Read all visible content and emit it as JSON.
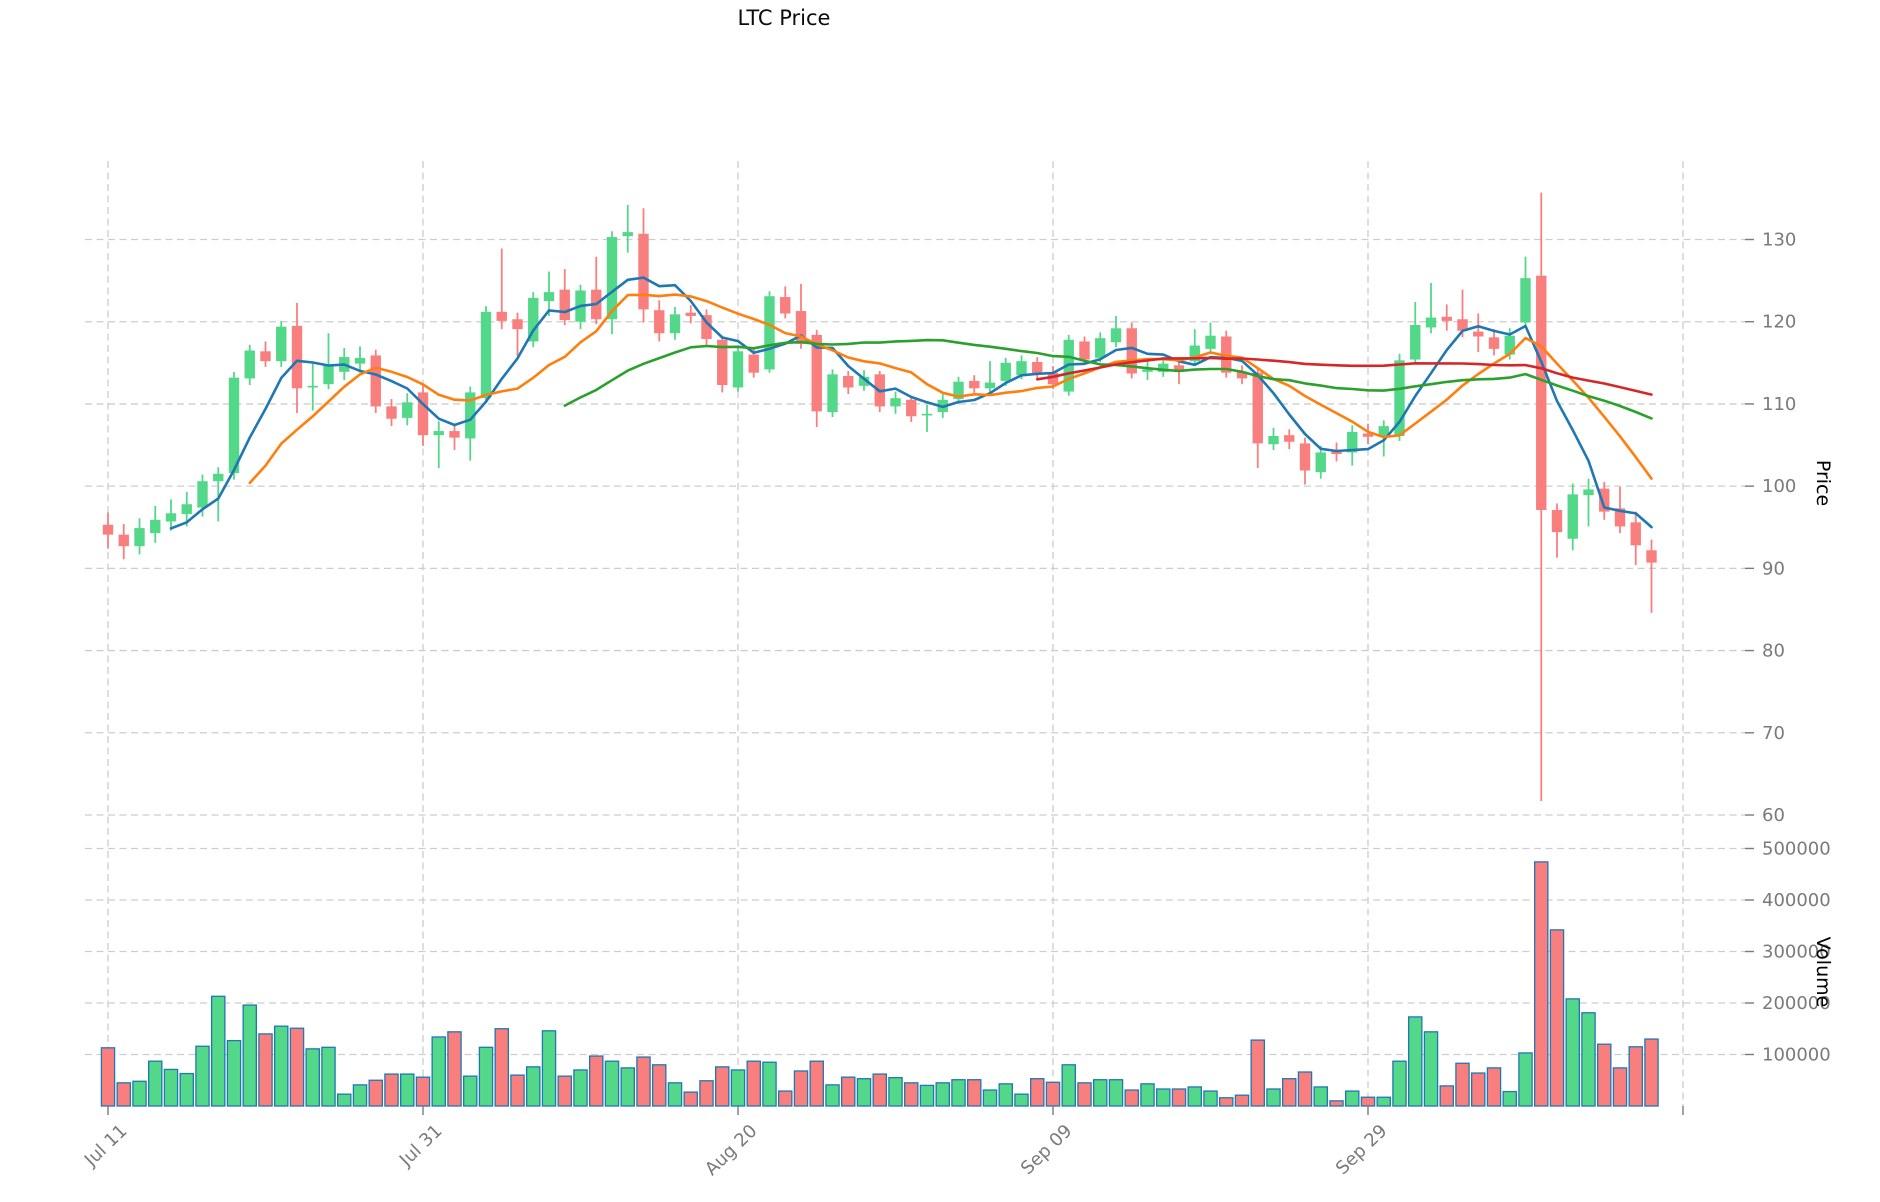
{
  "title": "LTC Price",
  "axes": {
    "price_label": "Price",
    "volume_label": "Volume",
    "price_ticks": [
      60,
      70,
      80,
      90,
      100,
      110,
      120,
      130
    ],
    "volume_ticks": [
      100000,
      200000,
      300000,
      400000,
      500000
    ],
    "x_ticks": [
      {
        "index": 0,
        "label": "Jul 11"
      },
      {
        "index": 20,
        "label": "Jul 31"
      },
      {
        "index": 40,
        "label": "Aug 20"
      },
      {
        "index": 60,
        "label": "Sep 09"
      },
      {
        "index": 80,
        "label": "Sep 29"
      },
      {
        "index": 100,
        "label": ""
      }
    ]
  },
  "colors": {
    "up": "#53D88A",
    "down": "#F97F7F",
    "volume_edge": "#1F77B4",
    "grid": "#CDCDCD",
    "tick_text": "#7A7A7A"
  },
  "chart_data": {
    "type": "candlestick",
    "title": "LTC Price",
    "ylabel": "Price",
    "ylabel2": "Volume",
    "legend_position": "none",
    "grid": true,
    "ma_windows": [
      5,
      10,
      30,
      60
    ],
    "ma_colors": [
      "#1F77B4",
      "#FF7F0E",
      "#2CA02C",
      "#D62728"
    ],
    "price_range": [
      58.5,
      139.5
    ],
    "volume_range": [
      0,
      520000
    ],
    "ohlcv": [
      [
        95.3,
        96.8,
        92.4,
        94.1,
        113000
      ],
      [
        94.1,
        95.4,
        91.1,
        92.7,
        45000
      ],
      [
        92.7,
        96.1,
        91.7,
        94.9,
        48000
      ],
      [
        94.3,
        97.6,
        93.1,
        95.9,
        87000
      ],
      [
        95.7,
        98.4,
        94.6,
        96.7,
        71000
      ],
      [
        96.6,
        99.3,
        95.1,
        97.8,
        63000
      ],
      [
        97.4,
        101.4,
        96.3,
        100.6,
        116000
      ],
      [
        100.6,
        102.3,
        95.7,
        101.5,
        213000
      ],
      [
        101.6,
        113.9,
        100.8,
        113.2,
        127000
      ],
      [
        113.1,
        117.2,
        112.3,
        116.5,
        196000
      ],
      [
        116.4,
        117.6,
        114.5,
        115.2,
        140000
      ],
      [
        115.2,
        120.1,
        114.5,
        119.4,
        155000
      ],
      [
        119.5,
        122.3,
        108.9,
        111.9,
        151000
      ],
      [
        112.0,
        115.1,
        109.2,
        112.2,
        111000
      ],
      [
        112.4,
        118.6,
        111.8,
        114.7,
        114000
      ],
      [
        113.9,
        116.8,
        112.9,
        115.7,
        23000
      ],
      [
        114.9,
        117.0,
        113.8,
        115.6,
        41000
      ],
      [
        115.9,
        116.6,
        108.9,
        109.7,
        50000
      ],
      [
        109.7,
        110.6,
        107.3,
        108.2,
        62000
      ],
      [
        108.3,
        111.3,
        107.4,
        110.2,
        62000
      ],
      [
        111.4,
        112.2,
        104.9,
        106.2,
        56000
      ],
      [
        106.2,
        107.9,
        102.2,
        106.7,
        134000
      ],
      [
        106.7,
        107.6,
        104.4,
        105.9,
        144000
      ],
      [
        105.8,
        112.1,
        103.1,
        111.4,
        58000
      ],
      [
        110.7,
        121.9,
        110.1,
        121.2,
        114000
      ],
      [
        121.2,
        128.9,
        119.1,
        120.1,
        150000
      ],
      [
        120.3,
        121.1,
        115.8,
        119.1,
        60000
      ],
      [
        117.6,
        123.6,
        116.9,
        122.9,
        76000
      ],
      [
        122.5,
        126.1,
        120.7,
        123.6,
        146000
      ],
      [
        123.9,
        126.4,
        119.6,
        120.2,
        58000
      ],
      [
        120.0,
        124.5,
        119.1,
        123.8,
        70000
      ],
      [
        123.9,
        127.9,
        119.7,
        120.3,
        97000
      ],
      [
        120.3,
        131.0,
        118.5,
        130.3,
        87000
      ],
      [
        130.4,
        134.2,
        128.4,
        130.9,
        74000
      ],
      [
        130.7,
        133.8,
        119.9,
        121.5,
        95000
      ],
      [
        121.4,
        122.6,
        117.6,
        118.6,
        80000
      ],
      [
        118.6,
        121.8,
        117.8,
        120.9,
        45000
      ],
      [
        121.1,
        122.0,
        119.8,
        120.7,
        27000
      ],
      [
        120.8,
        121.5,
        117.2,
        117.9,
        49000
      ],
      [
        117.8,
        118.3,
        111.4,
        112.3,
        76000
      ],
      [
        112.0,
        117.0,
        111.5,
        116.4,
        70000
      ],
      [
        116.0,
        116.8,
        113.2,
        113.8,
        87000
      ],
      [
        114.2,
        123.7,
        113.8,
        123.1,
        85000
      ],
      [
        123.0,
        124.3,
        120.4,
        121.0,
        29000
      ],
      [
        121.3,
        124.6,
        116.7,
        117.3,
        68000
      ],
      [
        118.4,
        119.0,
        107.2,
        109.1,
        87000
      ],
      [
        109.0,
        114.2,
        108.4,
        113.6,
        41000
      ],
      [
        113.4,
        114.0,
        111.2,
        112.0,
        56000
      ],
      [
        112.2,
        114.1,
        111.6,
        113.3,
        53000
      ],
      [
        113.6,
        114.0,
        109.0,
        109.7,
        62000
      ],
      [
        109.7,
        111.5,
        108.8,
        110.7,
        55000
      ],
      [
        110.5,
        111.0,
        107.8,
        108.5,
        45000
      ],
      [
        108.6,
        109.9,
        106.6,
        108.8,
        40000
      ],
      [
        109.0,
        111.2,
        108.3,
        110.5,
        45000
      ],
      [
        110.6,
        113.3,
        110.0,
        112.7,
        51000
      ],
      [
        112.8,
        113.5,
        111.2,
        111.9,
        51000
      ],
      [
        111.9,
        115.2,
        111.4,
        112.6,
        31000
      ],
      [
        112.8,
        115.6,
        112.2,
        115.0,
        43000
      ],
      [
        113.5,
        115.9,
        113.0,
        115.2,
        23000
      ],
      [
        115.1,
        115.7,
        112.9,
        113.6,
        53000
      ],
      [
        113.8,
        114.6,
        111.8,
        112.4,
        46000
      ],
      [
        111.5,
        118.4,
        111.0,
        117.8,
        80000
      ],
      [
        117.6,
        118.2,
        114.8,
        115.4,
        45000
      ],
      [
        115.6,
        118.7,
        115.1,
        118.0,
        51000
      ],
      [
        117.5,
        120.7,
        116.9,
        119.2,
        51000
      ],
      [
        119.2,
        119.9,
        113.1,
        113.7,
        31000
      ],
      [
        113.9,
        115.5,
        112.9,
        114.2,
        43000
      ],
      [
        113.9,
        115.7,
        113.3,
        114.9,
        33000
      ],
      [
        114.7,
        115.3,
        112.4,
        113.9,
        33000
      ],
      [
        115.2,
        119.1,
        114.7,
        117.1,
        37000
      ],
      [
        116.7,
        119.9,
        116.1,
        118.3,
        29000
      ],
      [
        118.2,
        118.9,
        113.2,
        113.8,
        16000
      ],
      [
        113.9,
        114.7,
        112.4,
        113.1,
        21000
      ],
      [
        113.8,
        114.3,
        102.2,
        105.2,
        128000
      ],
      [
        105.1,
        107.1,
        104.4,
        106.1,
        33000
      ],
      [
        106.2,
        106.9,
        104.5,
        105.4,
        53000
      ],
      [
        105.2,
        105.9,
        100.2,
        101.9,
        66000
      ],
      [
        101.7,
        104.9,
        100.9,
        104.1,
        37000
      ],
      [
        104.4,
        105.3,
        103.0,
        103.9,
        10000
      ],
      [
        104.1,
        107.4,
        102.5,
        106.6,
        29000
      ],
      [
        106.4,
        107.6,
        105.1,
        106.0,
        17000
      ],
      [
        106.1,
        108.0,
        103.6,
        107.3,
        17000
      ],
      [
        106.1,
        116.1,
        105.5,
        115.3,
        87000
      ],
      [
        115.4,
        122.4,
        114.9,
        119.6,
        173000
      ],
      [
        119.3,
        124.7,
        118.6,
        120.5,
        144000
      ],
      [
        120.6,
        122.1,
        118.9,
        120.1,
        39000
      ],
      [
        120.3,
        123.9,
        118.1,
        118.9,
        83000
      ],
      [
        118.8,
        121.0,
        116.3,
        118.2,
        64000
      ],
      [
        118.1,
        119.1,
        115.9,
        116.7,
        74000
      ],
      [
        116.0,
        119.2,
        115.4,
        118.3,
        28000
      ],
      [
        119.9,
        127.9,
        119.3,
        125.3,
        103000
      ],
      [
        125.6,
        135.7,
        61.7,
        97.1,
        474000
      ],
      [
        97.1,
        97.9,
        91.3,
        94.4,
        342000
      ],
      [
        93.6,
        100.3,
        92.2,
        99.0,
        208000
      ],
      [
        98.9,
        100.9,
        95.1,
        99.6,
        181000
      ],
      [
        99.7,
        100.5,
        95.9,
        96.9,
        120000
      ],
      [
        97.3,
        99.9,
        94.3,
        95.1,
        74000
      ],
      [
        95.6,
        96.9,
        90.4,
        92.8,
        115000
      ],
      [
        92.2,
        93.5,
        84.6,
        90.7,
        130000
      ]
    ]
  }
}
